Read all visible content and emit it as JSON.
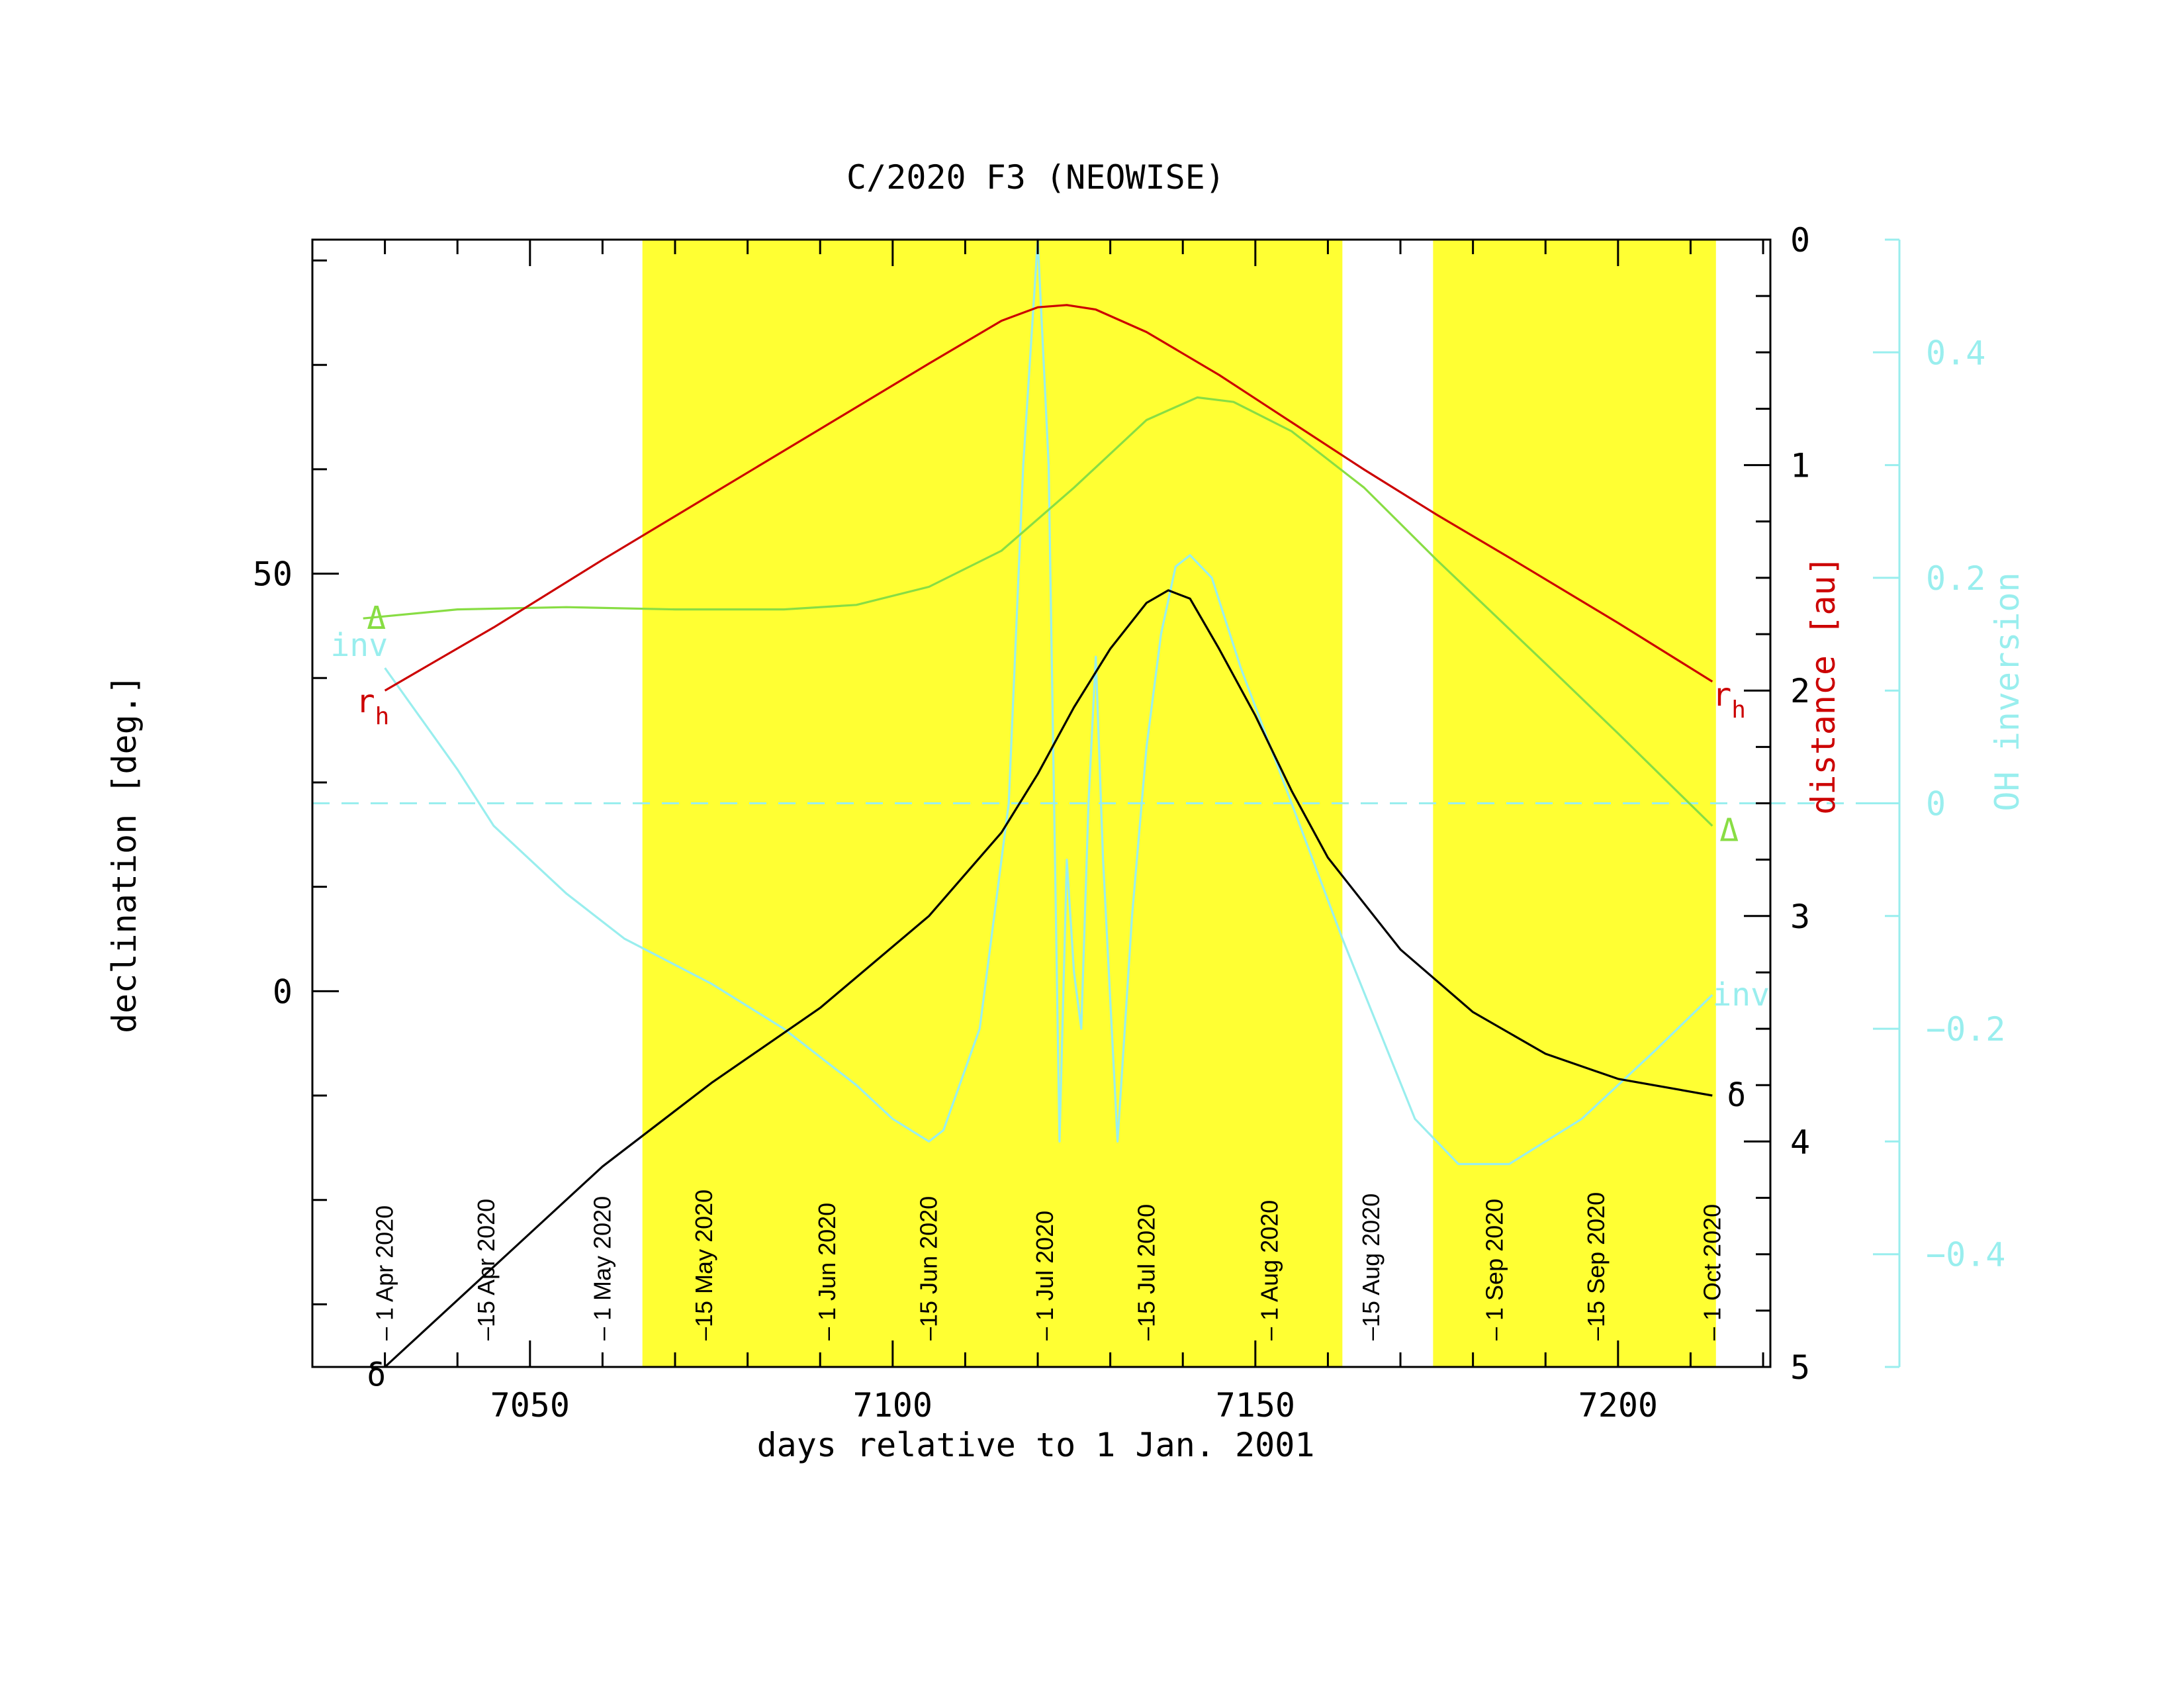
{
  "chart_data": {
    "type": "line",
    "title": "C/2020 F3 (NEOWISE)",
    "xlabel": "days relative to 1 Jan. 2001",
    "ylabel_left": "declination [deg.]",
    "ylabel_right_distance": "distance [au]",
    "ylabel_right_inversion": "OH inversion",
    "xlim": [
      7020,
      7221
    ],
    "ylim_left": [
      -45,
      90
    ],
    "ylim_distance": [
      5,
      0
    ],
    "ylim_inversion": [
      -0.5,
      0.5
    ],
    "x_ticks": [
      "7050",
      "7100",
      "7150",
      "7200"
    ],
    "y_left_ticks": [
      "0",
      "50"
    ],
    "y_distance_ticks": [
      "0",
      "1",
      "2",
      "3",
      "4",
      "5"
    ],
    "y_inversion_ticks": [
      "0.4",
      "0.2",
      "0",
      "−0.2",
      "−0.4"
    ],
    "grid": false,
    "zero_inversion_line": 0,
    "shaded_intervals": [
      {
        "start": 7065.5,
        "end": 7162
      },
      {
        "start": 7174.5,
        "end": 7213.5
      }
    ],
    "date_labels": [
      {
        "x": 7030,
        "label": "– 1 Apr 2020"
      },
      {
        "x": 7044,
        "label": "–15 Apr 2020"
      },
      {
        "x": 7060,
        "label": "– 1 May 2020"
      },
      {
        "x": 7074,
        "label": "–15 May 2020"
      },
      {
        "x": 7091,
        "label": "– 1 Jun 2020"
      },
      {
        "x": 7105,
        "label": "–15 Jun 2020"
      },
      {
        "x": 7121,
        "label": "– 1 Jul 2020"
      },
      {
        "x": 7135,
        "label": "–15 Jul 2020"
      },
      {
        "x": 7152,
        "label": "– 1 Aug 2020"
      },
      {
        "x": 7166,
        "label": "–15 Aug 2020"
      },
      {
        "x": 7183,
        "label": "– 1 Sep 2020"
      },
      {
        "x": 7197,
        "label": "–15 Sep 2020"
      },
      {
        "x": 7213,
        "label": "– 1 Oct 2020"
      }
    ],
    "series": [
      {
        "name": "δ",
        "axis": "left",
        "color": "#000000",
        "x": [
          7030,
          7045,
          7060,
          7075,
          7090,
          7105,
          7115,
          7120,
          7125,
          7130,
          7135,
          7138,
          7141,
          7145,
          7150,
          7155,
          7160,
          7170,
          7180,
          7190,
          7200,
          7213
        ],
        "y": [
          -45,
          -33,
          -21,
          -11,
          -2,
          9,
          19,
          26,
          34,
          41,
          46.5,
          48,
          47,
          41,
          33,
          24,
          16,
          5,
          -2.5,
          -7.5,
          -10.5,
          -12.5
        ]
      },
      {
        "name": "r_h",
        "axis": "distance",
        "color": "#cc0000",
        "x": [
          7030,
          7045,
          7060,
          7075,
          7090,
          7105,
          7115,
          7120,
          7124,
          7128,
          7135,
          7145,
          7155,
          7165,
          7175,
          7185,
          7200,
          7213
        ],
        "y": [
          2.0,
          1.72,
          1.42,
          1.13,
          0.84,
          0.55,
          0.36,
          0.3,
          0.29,
          0.31,
          0.41,
          0.6,
          0.81,
          1.02,
          1.22,
          1.41,
          1.7,
          1.96
        ]
      },
      {
        "name": "Δ",
        "axis": "distance",
        "color": "#88dd44",
        "x": [
          7027,
          7040,
          7055,
          7070,
          7085,
          7095,
          7105,
          7115,
          7125,
          7135,
          7142,
          7147,
          7155,
          7165,
          7175,
          7190,
          7200,
          7213
        ],
        "y": [
          1.68,
          1.64,
          1.63,
          1.64,
          1.64,
          1.62,
          1.54,
          1.38,
          1.1,
          0.8,
          0.7,
          0.72,
          0.85,
          1.1,
          1.42,
          1.88,
          2.19,
          2.6
        ]
      },
      {
        "name": "inv",
        "axis": "inversion",
        "color": "#99eeee",
        "x": [
          7030,
          7040,
          7045,
          7055,
          7063,
          7075,
          7085,
          7095,
          7100,
          7105,
          7107,
          7112,
          7116,
          7118,
          7120,
          7121.5,
          7123,
          7124,
          7125,
          7126,
          7127,
          7128,
          7129,
          7131,
          7133,
          7135,
          7137,
          7139,
          7141,
          7144,
          7148,
          7155,
          7162,
          7172,
          7178,
          7185,
          7195,
          7205,
          7213
        ],
        "y": [
          0.12,
          0.03,
          -0.02,
          -0.08,
          -0.12,
          -0.16,
          -0.2,
          -0.25,
          -0.28,
          -0.3,
          -0.29,
          -0.2,
          0.0,
          0.3,
          0.5,
          0.3,
          -0.3,
          -0.05,
          -0.15,
          -0.2,
          0.0,
          0.13,
          -0.05,
          -0.3,
          -0.1,
          0.05,
          0.15,
          0.21,
          0.22,
          0.2,
          0.12,
          0.0,
          -0.12,
          -0.28,
          -0.32,
          -0.32,
          -0.28,
          -0.22,
          -0.17
        ]
      }
    ],
    "curve_labels": [
      {
        "text": "δ",
        "x": 7027.5,
        "y": -46,
        "axis": "left",
        "color": "#000000"
      },
      {
        "text": "δ",
        "x": 7215,
        "y": -12.5,
        "axis": "left",
        "color": "#000000"
      },
      {
        "text": "r",
        "sub": "h",
        "x": 7026,
        "y": 2.05,
        "axis": "distance",
        "color": "#cc0000"
      },
      {
        "text": "r",
        "sub": "h",
        "x": 7213,
        "y": 2.02,
        "axis": "distance",
        "color": "#cc0000"
      },
      {
        "text": "Δ",
        "x": 7027.5,
        "y": 1.68,
        "axis": "distance",
        "color": "#88dd44"
      },
      {
        "text": "Δ",
        "x": 7214,
        "y": 2.62,
        "axis": "distance",
        "color": "#88dd44"
      },
      {
        "text": "inv",
        "x": 7022.5,
        "y": 0.14,
        "axis": "inversion",
        "color": "#99eeee"
      },
      {
        "text": "inv",
        "x": 7213,
        "y": -0.17,
        "axis": "inversion",
        "color": "#99eeee"
      }
    ],
    "colors": {
      "shade": "#ffff33",
      "axis": "#000000",
      "distance_axis": "#cc0000",
      "inversion_axis": "#99eeee"
    }
  }
}
